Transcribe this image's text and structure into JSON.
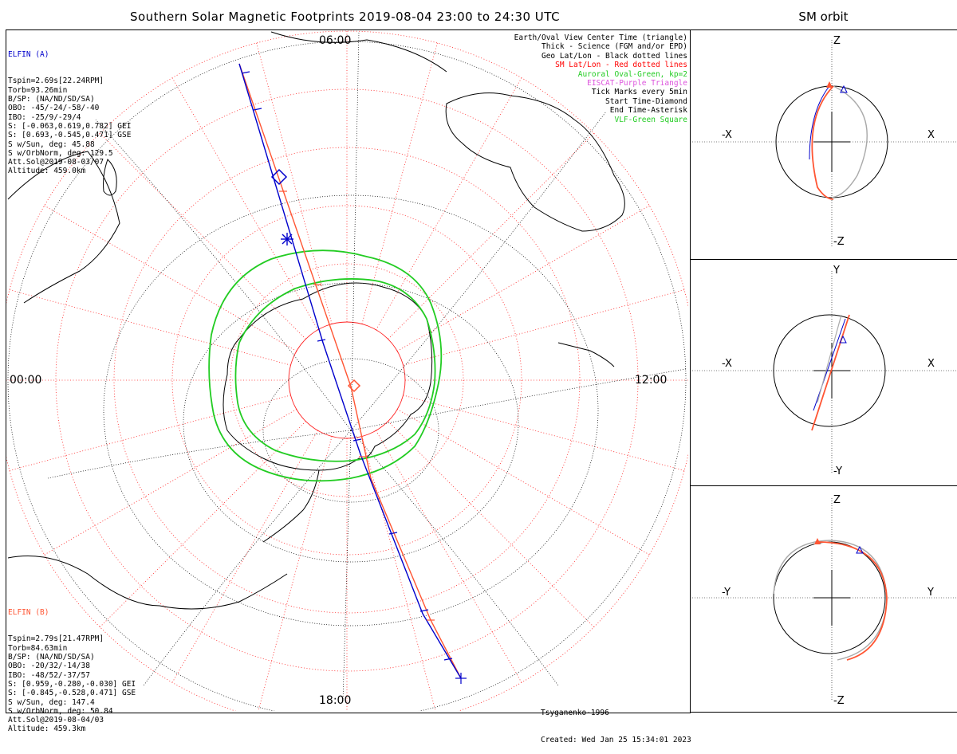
{
  "title": "Southern Solar Magnetic Footprints 2019-08-04 23:00 to 24:30 UTC",
  "orbit_title": "SM orbit",
  "colors": {
    "elfin_a": "#0000cc",
    "elfin_b": "#ff5533",
    "oval": "#22cc22",
    "sm_grid": "#ff2222",
    "geo_grid": "#000000"
  },
  "mlt_labels": {
    "top": "06:00",
    "bottom": "18:00",
    "left": "00:00",
    "right": "12:00"
  },
  "elfin_a": {
    "name": "ELFIN (A)",
    "lines": [
      "Tspin=2.69s[22.24RPM]",
      "Torb=93.26min",
      "B/SP: (NA/ND/SD/SA)",
      "OBO: -45/-24/-58/-40",
      "IBO: -25/9/-29/4",
      "S: [-0.063,0.619,0.782] GEI",
      "S: [0.693,-0.545,0.471] GSE",
      "S w/Sun, deg: 45.88",
      "S w/OrbNorm, deg: 129.5",
      "Att.Sol@2019-08-03/07",
      "Altitude: 459.0km"
    ]
  },
  "elfin_b": {
    "name": "ELFIN (B)",
    "lines": [
      "Tspin=2.79s[21.47RPM]",
      "Torb=84.63min",
      "B/SP: (NA/ND/SD/SA)",
      "OBO: -20/32/-14/38",
      "IBO: -48/52/-37/57",
      "S: [0.959,-0.280,-0.030] GEI",
      "S: [-0.845,-0.528,0.471] GSE",
      "S w/Sun, deg: 147.4",
      "S w/OrbNorm, deg: 50.84",
      "Att.Sol@2019-08-04/03",
      "Altitude: 459.3km"
    ]
  },
  "legend": [
    {
      "text": "Earth/Oval View Center Time (triangle)",
      "color": "#000000"
    },
    {
      "text": "Thick - Science (FGM and/or EPD)",
      "color": "#000000"
    },
    {
      "text": "Geo Lat/Lon - Black dotted lines",
      "color": "#000000"
    },
    {
      "text": "SM Lat/Lon - Red dotted lines",
      "color": "#ff0000"
    },
    {
      "text": "Auroral Oval-Green, kp=2",
      "color": "#22cc22"
    },
    {
      "text": "EISCAT-Purple Triangle",
      "color": "#dd55dd"
    },
    {
      "text": "Tick Marks every 5min",
      "color": "#000000"
    },
    {
      "text": "Start Time-Diamond",
      "color": "#000000"
    },
    {
      "text": "End Time-Asterisk",
      "color": "#000000"
    },
    {
      "text": "VLF-Green Square",
      "color": "#22cc22"
    }
  ],
  "credit": {
    "model": "Tsyganenko-1996",
    "created": "Created: Wed Jan 25 15:34:01 2023"
  },
  "orbit_panels": [
    {
      "top": "Z",
      "bottom": "-Z",
      "left": "-X",
      "right": "X"
    },
    {
      "top": "Y",
      "bottom": "-Y",
      "left": "-X",
      "right": "X"
    },
    {
      "top": "Z",
      "bottom": "-Z",
      "left": "-Y",
      "right": "Y"
    }
  ]
}
